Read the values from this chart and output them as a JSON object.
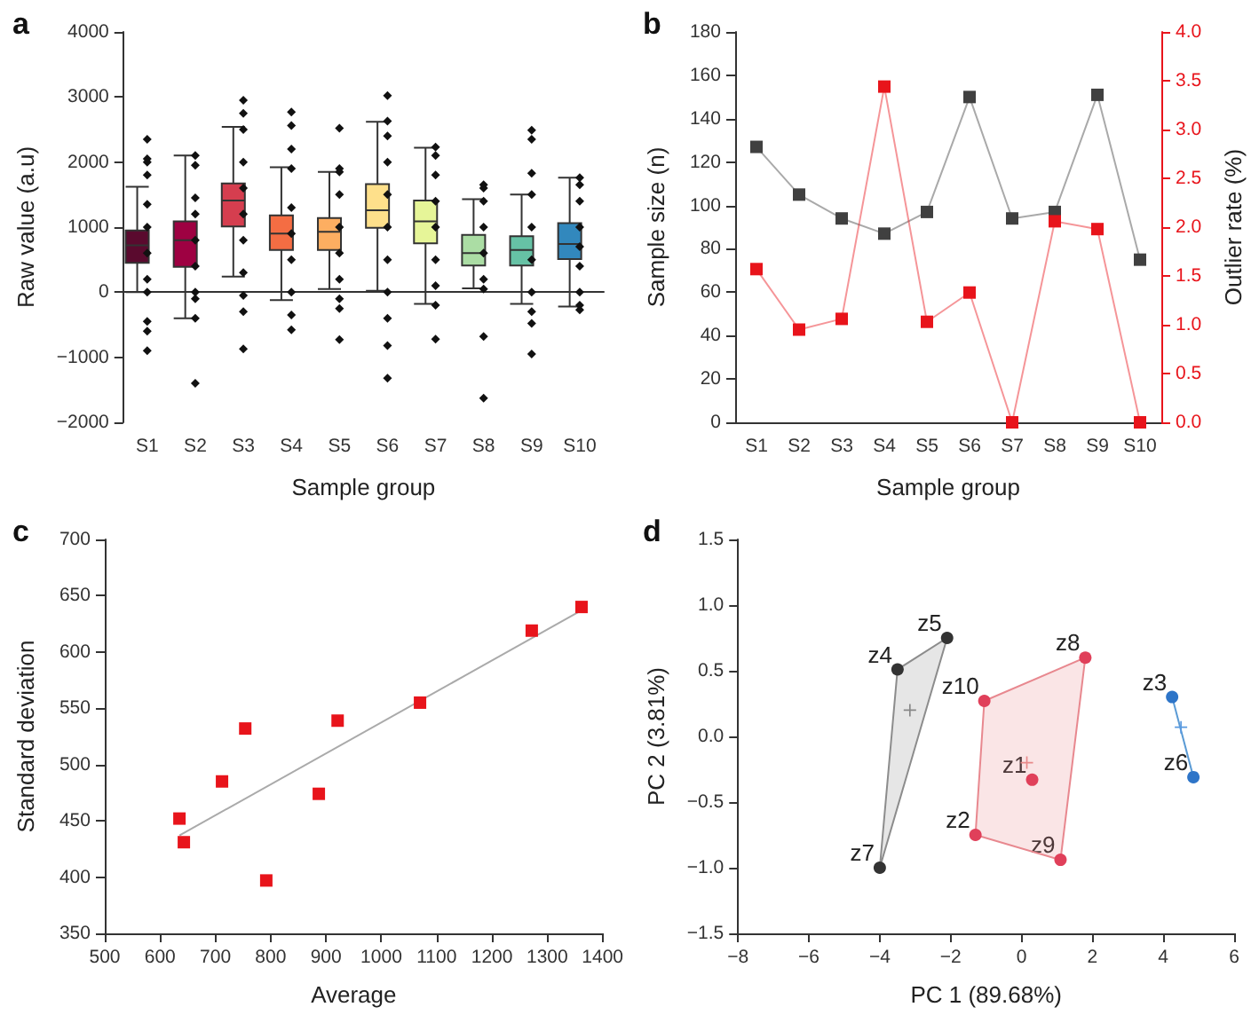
{
  "chart_data": [
    {
      "type": "box",
      "title": "a",
      "xlabel": "Sample group",
      "ylabel": "Raw value (a.u)",
      "categories": [
        "S1",
        "S2",
        "S3",
        "S4",
        "S5",
        "S6",
        "S7",
        "S8",
        "S9",
        "S10"
      ],
      "colors": [
        "#5a0a2e",
        "#9e0142",
        "#d53e4f",
        "#f46d43",
        "#fdae61",
        "#fee08b",
        "#e6f598",
        "#abdda4",
        "#66c2a5",
        "#3288bd"
      ],
      "boxes": [
        {
          "low": 0,
          "q1": 450,
          "median": 720,
          "q3": 950,
          "high": 1620
        },
        {
          "low": -400,
          "q1": 390,
          "median": 800,
          "q3": 1090,
          "high": 2100
        },
        {
          "low": 240,
          "q1": 1010,
          "median": 1410,
          "q3": 1670,
          "high": 2540
        },
        {
          "low": -120,
          "q1": 650,
          "median": 900,
          "q3": 1180,
          "high": 1920
        },
        {
          "low": 50,
          "q1": 650,
          "median": 930,
          "q3": 1140,
          "high": 1850
        },
        {
          "low": 20,
          "q1": 990,
          "median": 1260,
          "q3": 1660,
          "high": 2620
        },
        {
          "low": -180,
          "q1": 750,
          "median": 1090,
          "q3": 1410,
          "high": 2220
        },
        {
          "low": 60,
          "q1": 410,
          "median": 600,
          "q3": 880,
          "high": 1430
        },
        {
          "low": -180,
          "q1": 410,
          "median": 650,
          "q3": 860,
          "high": 1500
        },
        {
          "low": -220,
          "q1": 510,
          "median": 740,
          "q3": 1060,
          "high": 1760
        }
      ],
      "series": [
        {
          "type": "scatter",
          "color": "#111111",
          "x": [
            "S1",
            "S1",
            "S1",
            "S1",
            "S1",
            "S1",
            "S1",
            "S1",
            "S1",
            "S1",
            "S1",
            "S1",
            "S2",
            "S2",
            "S2",
            "S2",
            "S2",
            "S2",
            "S2",
            "S2",
            "S2",
            "S2",
            "S3",
            "S3",
            "S3",
            "S3",
            "S3",
            "S3",
            "S3",
            "S3",
            "S3",
            "S3",
            "S3",
            "S4",
            "S4",
            "S4",
            "S4",
            "S4",
            "S4",
            "S4",
            "S4",
            "S4",
            "S4",
            "S5",
            "S5",
            "S5",
            "S5",
            "S5",
            "S5",
            "S5",
            "S5",
            "S5",
            "S5",
            "S6",
            "S6",
            "S6",
            "S6",
            "S6",
            "S6",
            "S6",
            "S6",
            "S6",
            "S6",
            "S6",
            "S7",
            "S7",
            "S7",
            "S7",
            "S7",
            "S7",
            "S7",
            "S7",
            "S7",
            "S8",
            "S8",
            "S8",
            "S8",
            "S8",
            "S8",
            "S8",
            "S8",
            "S8",
            "S9",
            "S9",
            "S9",
            "S9",
            "S9",
            "S9",
            "S9",
            "S9",
            "S9",
            "S9",
            "S10",
            "S10",
            "S10",
            "S10",
            "S10",
            "S10",
            "S10",
            "S10",
            "S10"
          ],
          "values": [
            2350,
            2050,
            2000,
            1800,
            1350,
            1000,
            600,
            200,
            0,
            -450,
            -600,
            -900,
            2100,
            1950,
            1450,
            1200,
            800,
            400,
            0,
            -100,
            -400,
            -1400,
            2950,
            2750,
            2500,
            2000,
            1600,
            1200,
            800,
            300,
            -50,
            -300,
            -870,
            2770,
            2560,
            2200,
            1900,
            1300,
            900,
            500,
            0,
            -350,
            -580,
            2520,
            1900,
            1850,
            1500,
            1000,
            600,
            200,
            -100,
            -250,
            -730,
            3020,
            2630,
            2400,
            2000,
            1500,
            1000,
            500,
            0,
            -400,
            -820,
            -1320,
            2230,
            2100,
            1800,
            1400,
            1000,
            500,
            100,
            -200,
            -720,
            1650,
            1600,
            1400,
            1000,
            600,
            200,
            50,
            -680,
            -1630,
            2490,
            2350,
            1830,
            1500,
            1000,
            500,
            0,
            -300,
            -480,
            -950,
            1760,
            1650,
            1400,
            1000,
            700,
            400,
            0,
            -200,
            -270
          ]
        }
      ],
      "marker": "diamond",
      "ylim": [
        -2000,
        4000
      ],
      "yticks": [
        {
          "value": -2000,
          "label": "−2000"
        },
        {
          "value": -1000,
          "label": "−1000"
        },
        0,
        1000,
        2000,
        3000,
        4000
      ]
    },
    {
      "type": "line",
      "title": "b",
      "xlabel": "Sample group",
      "ylabel": "Sample size (n)",
      "y2label": "Outlier rate (%)",
      "categories": [
        "S1",
        "S2",
        "S3",
        "S4",
        "S5",
        "S6",
        "S7",
        "S8",
        "S9",
        "S10"
      ],
      "marker": "square",
      "series": [
        {
          "color": "#404040",
          "values": [
            127,
            105,
            94,
            87,
            97,
            150,
            94,
            97,
            151,
            75
          ]
        },
        {
          "color": "#e8141b",
          "axis": "y2",
          "values": [
            1.57,
            0.95,
            1.06,
            3.44,
            1.03,
            1.33,
            0,
            2.06,
            1.98,
            0
          ]
        }
      ],
      "ylim": [
        0,
        180
      ],
      "yticks": [
        0,
        20,
        40,
        60,
        80,
        100,
        120,
        140,
        160,
        180
      ],
      "y2lim": [
        0,
        4
      ],
      "y2ticks": [
        {
          "value": 0,
          "label": "0.0"
        },
        0.5,
        {
          "value": 1,
          "label": "1.0"
        },
        1.5,
        {
          "value": 2,
          "label": "2.0"
        },
        2.5,
        {
          "value": 3,
          "label": "3.0"
        },
        3.5,
        {
          "value": 4,
          "label": "4.0"
        }
      ]
    },
    {
      "type": "scatter",
      "title": "c",
      "xlabel": "Average",
      "ylabel": "Standard deviation",
      "marker": "square",
      "series": [
        {
          "color": "#e8141b",
          "x": [
            635,
            643,
            712,
            754,
            792,
            887,
            921,
            1070,
            1272,
            1362
          ],
          "values": [
            452,
            431,
            485,
            532,
            397,
            474,
            539,
            555,
            619,
            640
          ]
        },
        {
          "type": "line",
          "marker": "none",
          "color": "#aaaaaa",
          "x": [
            635,
            1362
          ],
          "values": [
            437,
            637
          ]
        }
      ],
      "xlim": [
        500,
        1400
      ],
      "xticks": [
        500,
        600,
        700,
        800,
        900,
        1000,
        1100,
        1200,
        1300,
        1400
      ],
      "ylim": [
        350,
        700
      ],
      "yticks": [
        350,
        400,
        450,
        500,
        550,
        600,
        650,
        700
      ]
    },
    {
      "type": "scatter",
      "title": "d",
      "xlabel": "PC 1 (89.68%)",
      "ylabel": "PC 2 (3.81%)",
      "marker": "circle",
      "series": [
        {
          "type": "area",
          "marker": "none",
          "color": "#8c8c8c",
          "x": [
            -3.5,
            -2.1,
            -4.0,
            -3.5
          ],
          "values": [
            0.51,
            0.75,
            -1.0,
            0.51
          ]
        },
        {
          "type": "area",
          "marker": "none",
          "color": "#e8888f",
          "x": [
            -1.05,
            1.8,
            1.1,
            -1.3,
            -1.05
          ],
          "values": [
            0.27,
            0.6,
            -0.94,
            -0.75,
            0.27
          ]
        },
        {
          "type": "line",
          "marker": "none",
          "color": "#5b9bd5",
          "x": [
            4.25,
            4.85
          ],
          "values": [
            0.3,
            -0.31
          ]
        },
        {
          "color": "#333333",
          "x": [
            -3.5,
            -2.1,
            -4.0
          ],
          "values": [
            0.51,
            0.75,
            -1.0
          ]
        },
        {
          "color": "#e0405a",
          "x": [
            0.3,
            -1.3,
            1.8,
            1.1,
            -1.05
          ],
          "values": [
            -0.33,
            -0.75,
            0.6,
            -0.94,
            0.27
          ]
        },
        {
          "color": "#2e75c8",
          "x": [
            4.25,
            4.85
          ],
          "values": [
            0.3,
            -0.31
          ]
        },
        {
          "marker": "cross",
          "color": "#888888",
          "x": [
            -3.15
          ],
          "values": [
            0.2
          ]
        },
        {
          "marker": "cross",
          "color": "#e88a8a",
          "x": [
            0.15
          ],
          "values": [
            -0.2
          ]
        },
        {
          "marker": "cross",
          "color": "#5a9ae0",
          "x": [
            4.5
          ],
          "values": [
            0.07
          ]
        }
      ],
      "annotations": [
        {
          "text": "z1",
          "x": 0.3,
          "y": -0.33
        },
        {
          "text": "z2",
          "x": -1.3,
          "y": -0.75
        },
        {
          "text": "z3",
          "x": 4.25,
          "y": 0.3
        },
        {
          "text": "z4",
          "x": -3.5,
          "y": 0.51
        },
        {
          "text": "z5",
          "x": -2.1,
          "y": 0.75
        },
        {
          "text": "z6",
          "x": 4.85,
          "y": -0.31
        },
        {
          "text": "z7",
          "x": -4.0,
          "y": -1.0
        },
        {
          "text": "z8",
          "x": 1.8,
          "y": 0.6
        },
        {
          "text": "z9",
          "x": 1.1,
          "y": -0.94
        },
        {
          "text": "z10",
          "x": -1.05,
          "y": 0.27
        }
      ],
      "xlim": [
        -8,
        6
      ],
      "xticks": [
        {
          "value": -8,
          "label": "−8"
        },
        {
          "value": -6,
          "label": "−6"
        },
        {
          "value": -4,
          "label": "−4"
        },
        {
          "value": -2,
          "label": "−2"
        },
        0,
        2,
        4,
        6
      ],
      "ylim": [
        -1.5,
        1.5
      ],
      "yticks": [
        {
          "value": -1.5,
          "label": "−1.5"
        },
        {
          "value": -1,
          "label": "−1.0"
        },
        {
          "value": -0.5,
          "label": "−0.5"
        },
        {
          "value": 0,
          "label": "0.0"
        },
        0.5,
        {
          "value": 1,
          "label": "1.0"
        },
        1.5
      ]
    }
  ]
}
